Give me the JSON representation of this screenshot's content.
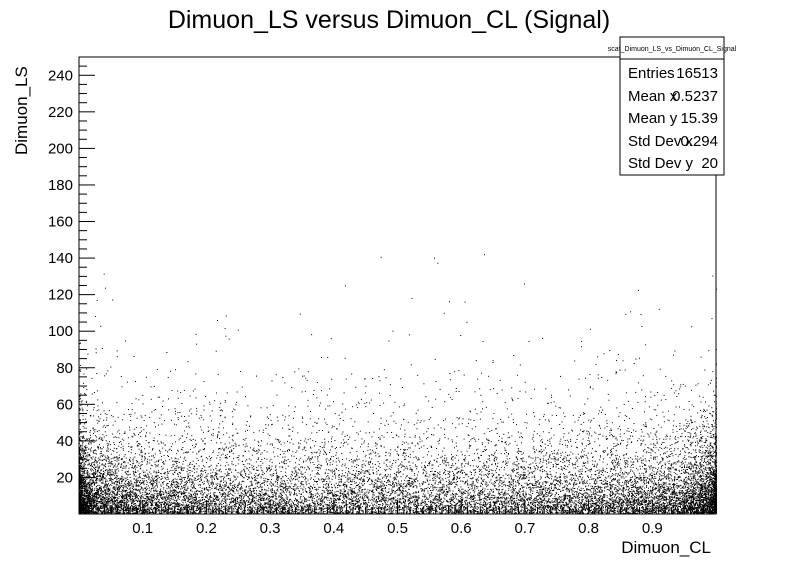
{
  "chart_data": {
    "type": "scatter",
    "title": "Dimuon_LS versus Dimuon_CL (Signal)",
    "xlabel": "Dimuon_CL",
    "ylabel": "Dimuon_LS",
    "xlim": [
      0,
      1
    ],
    "ylim": [
      0,
      250
    ],
    "x_ticks": [
      0.1,
      0.2,
      0.3,
      0.4,
      0.5,
      0.6,
      0.7,
      0.8,
      0.9
    ],
    "y_ticks": [
      20,
      40,
      60,
      80,
      100,
      120,
      140,
      160,
      180,
      200,
      220,
      240
    ],
    "x_tick_labels": [
      "0.1",
      "0.2",
      "0.3",
      "0.4",
      "0.5",
      "0.6",
      "0.7",
      "0.8",
      "0.9"
    ],
    "y_tick_labels": [
      "20",
      "40",
      "60",
      "80",
      "100",
      "120",
      "140",
      "160",
      "180",
      "200",
      "220",
      "240"
    ],
    "distribution": {
      "entries": 16513,
      "x_mean": 0.5237,
      "y_mean": 15.39,
      "x_std": 0.294,
      "y_std": 20
    },
    "marker_color": "#000000",
    "grid": false,
    "legend": "none",
    "stats_box": {
      "position": "top-right",
      "title": "scat_Dimuon_LS_vs_Dimuon_CL_Signal",
      "rows": [
        {
          "label": "Entries",
          "value": "16513"
        },
        {
          "label": "Mean x",
          "value": "0.5237"
        },
        {
          "label": "Mean y",
          "value": "15.39"
        },
        {
          "label": "Std Dev x",
          "value": "0.294"
        },
        {
          "label": "Std Dev y",
          "value": "20"
        }
      ]
    }
  }
}
